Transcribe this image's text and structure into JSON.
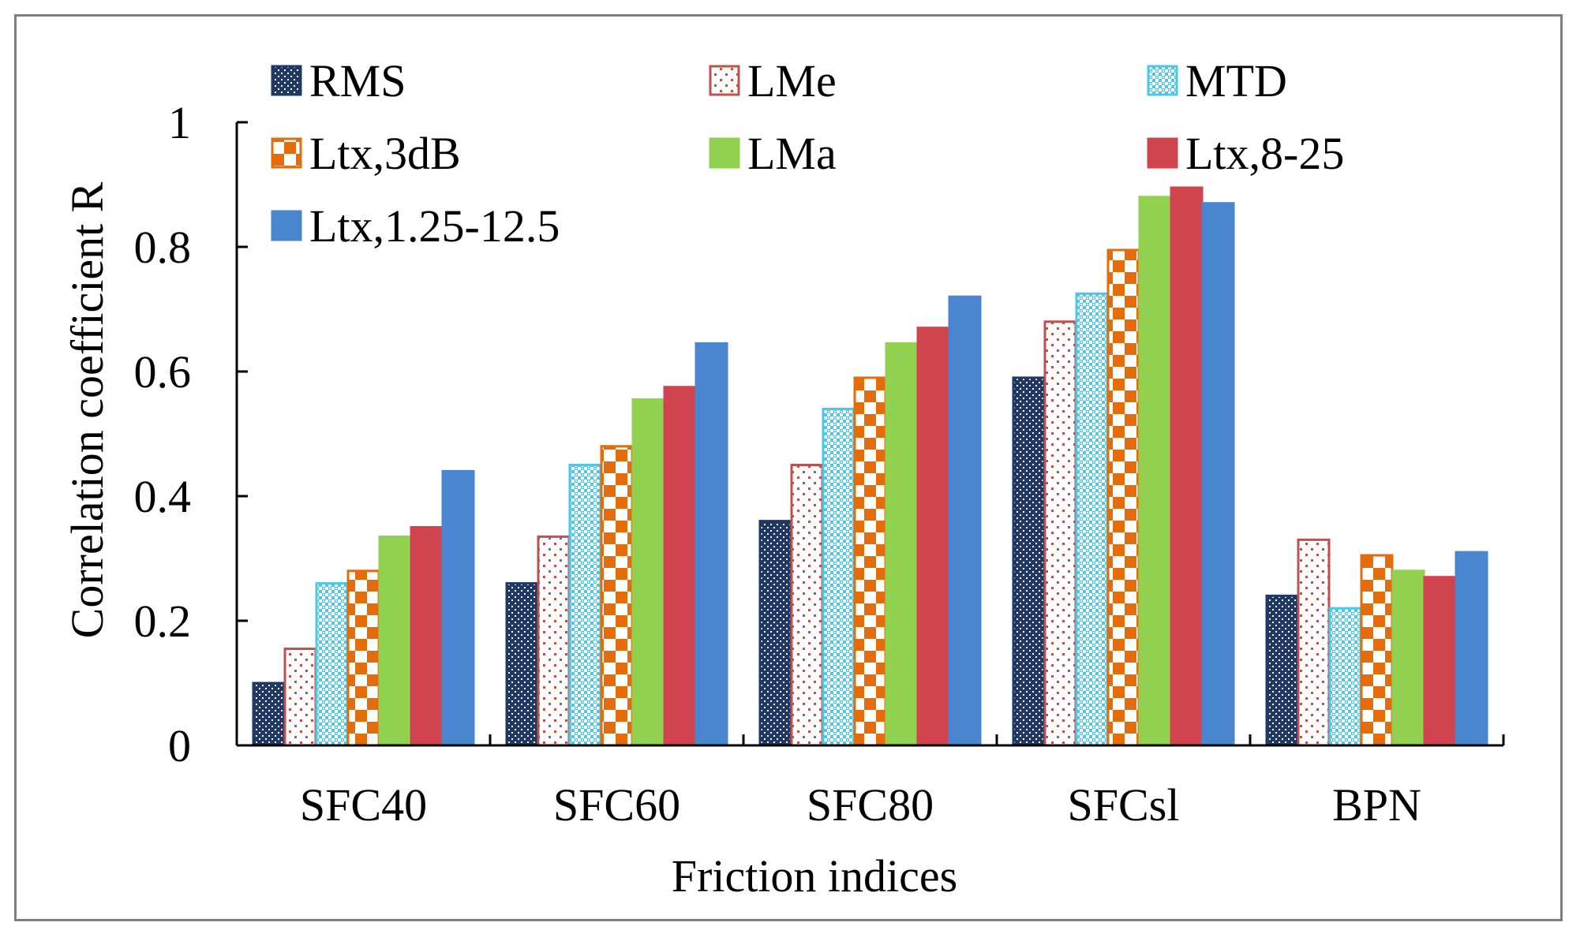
{
  "chart_data": {
    "type": "bar",
    "title": "",
    "xlabel": "Friction indices",
    "ylabel": "Correlation coefficient R",
    "ylim": [
      0,
      1
    ],
    "yticks": [
      0,
      0.2,
      0.4,
      0.6,
      0.8,
      1
    ],
    "ytick_labels": [
      "0",
      "0.2",
      "0.4",
      "0.6",
      "0.8",
      "1"
    ],
    "grid": false,
    "legend_position": "top",
    "categories": [
      "SFC40",
      "SFC60",
      "SFC80",
      "SFCsl",
      "BPN"
    ],
    "series": [
      {
        "name": "RMS",
        "color": "#1f3864",
        "pattern": "checker-dots",
        "values": [
          0.1,
          0.26,
          0.36,
          0.59,
          0.24
        ]
      },
      {
        "name": "LMe",
        "color": "#c0504d",
        "pattern": "sparse-dots",
        "values": [
          0.155,
          0.335,
          0.45,
          0.68,
          0.33
        ]
      },
      {
        "name": "MTD",
        "color": "#4bc8e8",
        "pattern": "dense-dots",
        "values": [
          0.26,
          0.45,
          0.54,
          0.725,
          0.22
        ]
      },
      {
        "name": "Ltx,3dB",
        "color": "#e46c0a",
        "pattern": "checkerboard",
        "values": [
          0.28,
          0.48,
          0.59,
          0.795,
          0.305
        ]
      },
      {
        "name": "LMa",
        "color": "#92d050",
        "pattern": "solid",
        "values": [
          0.335,
          0.555,
          0.645,
          0.88,
          0.28
        ]
      },
      {
        "name": "Ltx,8-25",
        "color": "#d0434f",
        "pattern": "solid",
        "values": [
          0.35,
          0.575,
          0.67,
          0.895,
          0.27
        ]
      },
      {
        "name": "Ltx,1.25-12.5",
        "color": "#4a86d0",
        "pattern": "solid",
        "values": [
          0.44,
          0.645,
          0.72,
          0.87,
          0.31
        ]
      }
    ]
  }
}
